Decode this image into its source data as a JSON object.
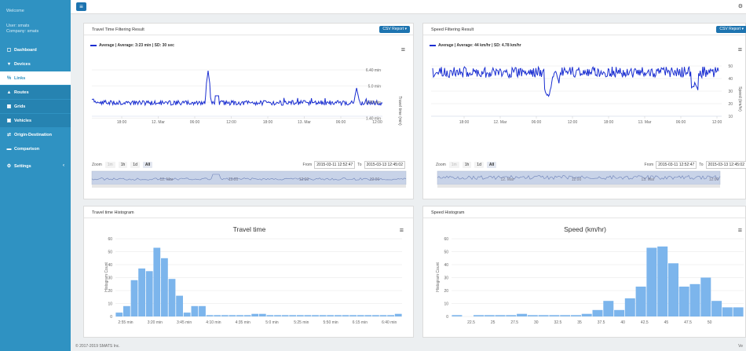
{
  "sidebar": {
    "welcome": "Welcome",
    "user": "User: smats",
    "company": "Company: smats",
    "items": [
      {
        "label": "Dashboard",
        "icon": "dashboard-icon",
        "glyph": "▢"
      },
      {
        "label": "Devices",
        "icon": "chevron-down-icon",
        "glyph": "▾"
      },
      {
        "label": "Links",
        "icon": "links-icon",
        "glyph": "%"
      },
      {
        "label": "Routes",
        "icon": "routes-icon",
        "glyph": "▲"
      },
      {
        "label": "Grids",
        "icon": "grids-icon",
        "glyph": "▦"
      },
      {
        "label": "Vehicles",
        "icon": "vehicle-icon",
        "glyph": "▣"
      },
      {
        "label": "Origin-Destination",
        "icon": "shuffle-icon",
        "glyph": "⇄"
      },
      {
        "label": "Comparison",
        "icon": "comparison-icon",
        "glyph": "▬"
      },
      {
        "label": "Settings",
        "icon": "gear-icon",
        "glyph": "⚙"
      }
    ]
  },
  "topbar": {
    "menu_icon": "menu-icon",
    "right_icon": "gear-icon"
  },
  "travel_filter": {
    "title": "Travel Time Filtering Result",
    "csv": "CSV Report ▾",
    "legend": "Average | Average: 3:23 min | SD: 30 sec",
    "y_ticks": [
      "6.40 min",
      "5.0 min",
      "3.20 min",
      "1.40 min"
    ],
    "y_title": "Travel time (min)",
    "x_ticks": [
      "18:00",
      "12. Mar",
      "06:00",
      "12:00",
      "18:00",
      "13. Mar",
      "06:00",
      "12:00"
    ],
    "nav_labels": [
      "12. Mar",
      "12:00",
      "12:00"
    ],
    "zoom_label": "Zoom",
    "zoom_btns": [
      "1m",
      "1h",
      "1d",
      "All"
    ],
    "from_label": "From",
    "from_val": "2015-03-11 12:52:47",
    "to_label": "To",
    "to_val": "2015-03-13 12:45:02"
  },
  "speed_filter": {
    "title": "Speed Filtering Result",
    "csv": "CSV Report ▾",
    "legend": "Average | Average: 44 km/hr | SD: 4.78 km/hr",
    "y_ticks": [
      "50",
      "40",
      "30",
      "20",
      "10"
    ],
    "y_title": "Speed (km/hr)",
    "x_ticks": [
      "18:00",
      "12. Mar",
      "06:00",
      "12:00",
      "18:00",
      "13. Mar",
      "06:00",
      "12:00"
    ],
    "nav_labels": [
      "12. Mar",
      "12:00",
      "13. Mar",
      "12:00"
    ],
    "zoom_label": "Zoom",
    "zoom_btns": [
      "1m",
      "1h",
      "1d",
      "All"
    ],
    "from_label": "From",
    "from_val": "2015-03-11 12:52:47",
    "to_label": "To",
    "to_val": "2015-03-13 12:45:02"
  },
  "tt_hist": {
    "panel_title": "Travel time Histogram",
    "chart_title": "Travel time",
    "y_title": "Histogram Count",
    "y_ticks": [
      "60",
      "50",
      "40",
      "30",
      "20",
      "10",
      "0"
    ],
    "x_ticks": [
      "2:55 min",
      "3:20 min",
      "3:45 min",
      "4:10 min",
      "4:35 min",
      "5:0 min",
      "5:25 min",
      "5:50 min",
      "6:15 min",
      "6:40 min"
    ]
  },
  "sp_hist": {
    "panel_title": "Speed Histogram",
    "chart_title": "Speed (km/hr)",
    "y_title": "Histogram Count",
    "y_ticks": [
      "60",
      "50",
      "40",
      "30",
      "20",
      "10",
      "0"
    ],
    "x_ticks": [
      "22.5",
      "25",
      "27.5",
      "30",
      "32.5",
      "35",
      "37.5",
      "40",
      "42.5",
      "45",
      "47.5",
      "50"
    ]
  },
  "footer": {
    "copyright": "© 2017-2019 SMATS Inc.",
    "version": "Ve"
  },
  "chart_data": [
    {
      "type": "histogram",
      "title": "Travel time",
      "ylabel": "Histogram Count",
      "ylim": [
        0,
        60
      ],
      "bar_color": "#7cb5ec",
      "values": [
        3,
        8,
        28,
        37,
        35,
        53,
        45,
        29,
        16,
        3,
        8,
        8,
        1,
        1,
        1,
        1,
        1,
        1,
        2,
        2,
        1,
        1,
        1,
        1,
        1,
        1,
        1,
        1,
        1,
        1,
        1,
        1,
        1,
        1,
        1,
        1,
        1,
        2
      ]
    },
    {
      "type": "histogram",
      "title": "Speed (km/hr)",
      "ylabel": "Histogram Count",
      "ylim": [
        0,
        60
      ],
      "bar_color": "#7cb5ec",
      "values": [
        1,
        0,
        1,
        1,
        1,
        1,
        2,
        1,
        1,
        1,
        1,
        1,
        2,
        5,
        12,
        5,
        14,
        23,
        53,
        54,
        41,
        23,
        25,
        30,
        12,
        7,
        7
      ]
    }
  ]
}
